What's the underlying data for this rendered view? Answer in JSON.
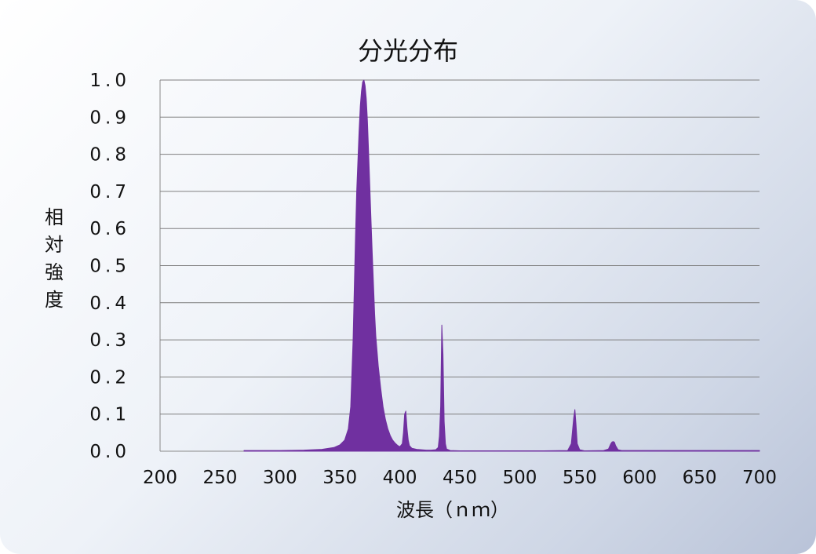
{
  "chart_data": {
    "type": "area",
    "title": "分光分布",
    "xlabel": "波長（ｎｍ）",
    "ylabel": "相対強度",
    "xlim": [
      200,
      700
    ],
    "ylim": [
      0,
      1.0
    ],
    "x_ticks": [
      "200",
      "250",
      "300",
      "350",
      "400",
      "450",
      "500",
      "550",
      "600",
      "650",
      "700"
    ],
    "y_ticks": [
      "0.0",
      "0.1",
      "0.2",
      "0.3",
      "0.4",
      "0.5",
      "0.6",
      "0.7",
      "0.8",
      "0.9",
      "1.0"
    ],
    "grid": true,
    "legend": "none",
    "color": "#7030a0",
    "series": [
      {
        "x": [
          270,
          300,
          320,
          335,
          345,
          350,
          354,
          357,
          359,
          361,
          363,
          364,
          365,
          366,
          367,
          368,
          369,
          370,
          371,
          372,
          373,
          374,
          375,
          376,
          377,
          378,
          379,
          380,
          382,
          384,
          386,
          388,
          390,
          392,
          394,
          396,
          398,
          400,
          402,
          403,
          404,
          405,
          406,
          407,
          408,
          410,
          414,
          418,
          422,
          426,
          430,
          432,
          433,
          434,
          435,
          436,
          437,
          438,
          439,
          442,
          450,
          480,
          520,
          540,
          543,
          545,
          546,
          547,
          548,
          550,
          554,
          570,
          574,
          576,
          577,
          578,
          579,
          580,
          582,
          585,
          600,
          650,
          700
        ],
        "y": [
          0.002,
          0.002,
          0.003,
          0.005,
          0.01,
          0.017,
          0.03,
          0.06,
          0.12,
          0.3,
          0.58,
          0.7,
          0.78,
          0.86,
          0.93,
          0.97,
          0.995,
          1.0,
          0.985,
          0.95,
          0.89,
          0.8,
          0.71,
          0.62,
          0.53,
          0.45,
          0.37,
          0.31,
          0.23,
          0.17,
          0.12,
          0.085,
          0.06,
          0.042,
          0.03,
          0.022,
          0.016,
          0.012,
          0.02,
          0.05,
          0.1,
          0.108,
          0.06,
          0.03,
          0.015,
          0.008,
          0.005,
          0.004,
          0.003,
          0.003,
          0.004,
          0.01,
          0.04,
          0.12,
          0.34,
          0.26,
          0.08,
          0.02,
          0.006,
          0.002,
          0.001,
          0.001,
          0.001,
          0.002,
          0.02,
          0.09,
          0.112,
          0.07,
          0.02,
          0.004,
          0.001,
          0.002,
          0.006,
          0.02,
          0.025,
          0.026,
          0.024,
          0.015,
          0.004,
          0.002,
          0.002,
          0.002,
          0.002
        ]
      }
    ]
  }
}
